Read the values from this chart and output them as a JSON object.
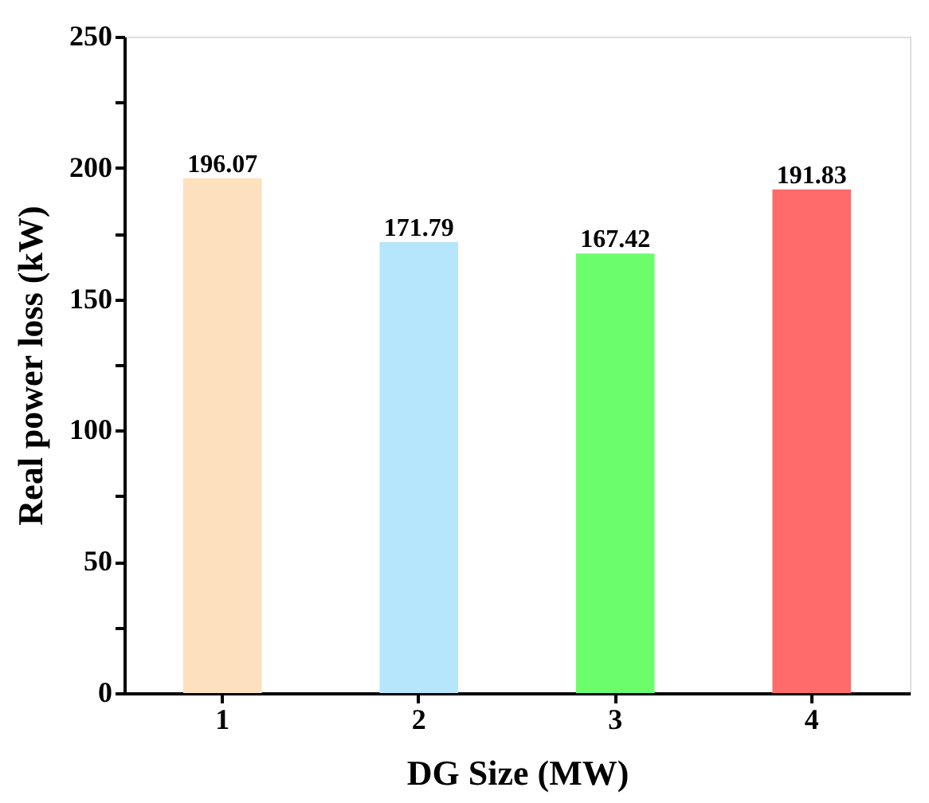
{
  "chart_data": {
    "type": "bar",
    "categories": [
      "1",
      "2",
      "3",
      "4"
    ],
    "values": [
      196.07,
      171.79,
      167.42,
      191.83
    ],
    "colors": [
      "#fde0bd",
      "#b5e6fb",
      "#6cfd6c",
      "#ff6b6b"
    ],
    "xlabel": "DG Size (MW)",
    "ylabel": "Real power loss (kW)",
    "ylim": [
      0,
      250
    ],
    "yticks": [
      0,
      {
        "value": 25,
        "label": null
      },
      50,
      {
        "value": 75,
        "label": null
      },
      100,
      {
        "value": 125,
        "label": null
      },
      150,
      {
        "value": 175,
        "label": null
      },
      200,
      {
        "value": 225,
        "label": null
      },
      250
    ],
    "data_labels": true,
    "grid": false
  }
}
